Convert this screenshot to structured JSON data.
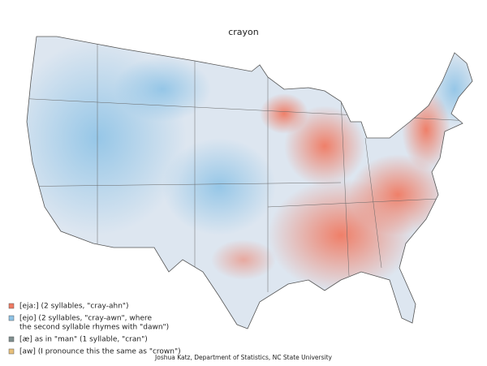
{
  "title": "crayon",
  "legend": {
    "items": [
      {
        "color": "#f07a62",
        "lines": [
          "[eja:] (2 syllables, \"cray-ahn\")"
        ]
      },
      {
        "color": "#8ec3e6",
        "lines": [
          "[ejo] (2 syllables, \"cray-awn\", where",
          "the second syllable rhymes with \"dawn\")"
        ]
      },
      {
        "color": "#7f8f8f",
        "lines": [
          "[æ] as in \"man\" (1 syllable, \"cran\")"
        ]
      },
      {
        "color": "#e8c07a",
        "lines": [
          "[aw] (I pronounce this the same as \"crown\")"
        ]
      }
    ]
  },
  "credit": "Joshua Katz, Department of Statistics, NC State University"
}
